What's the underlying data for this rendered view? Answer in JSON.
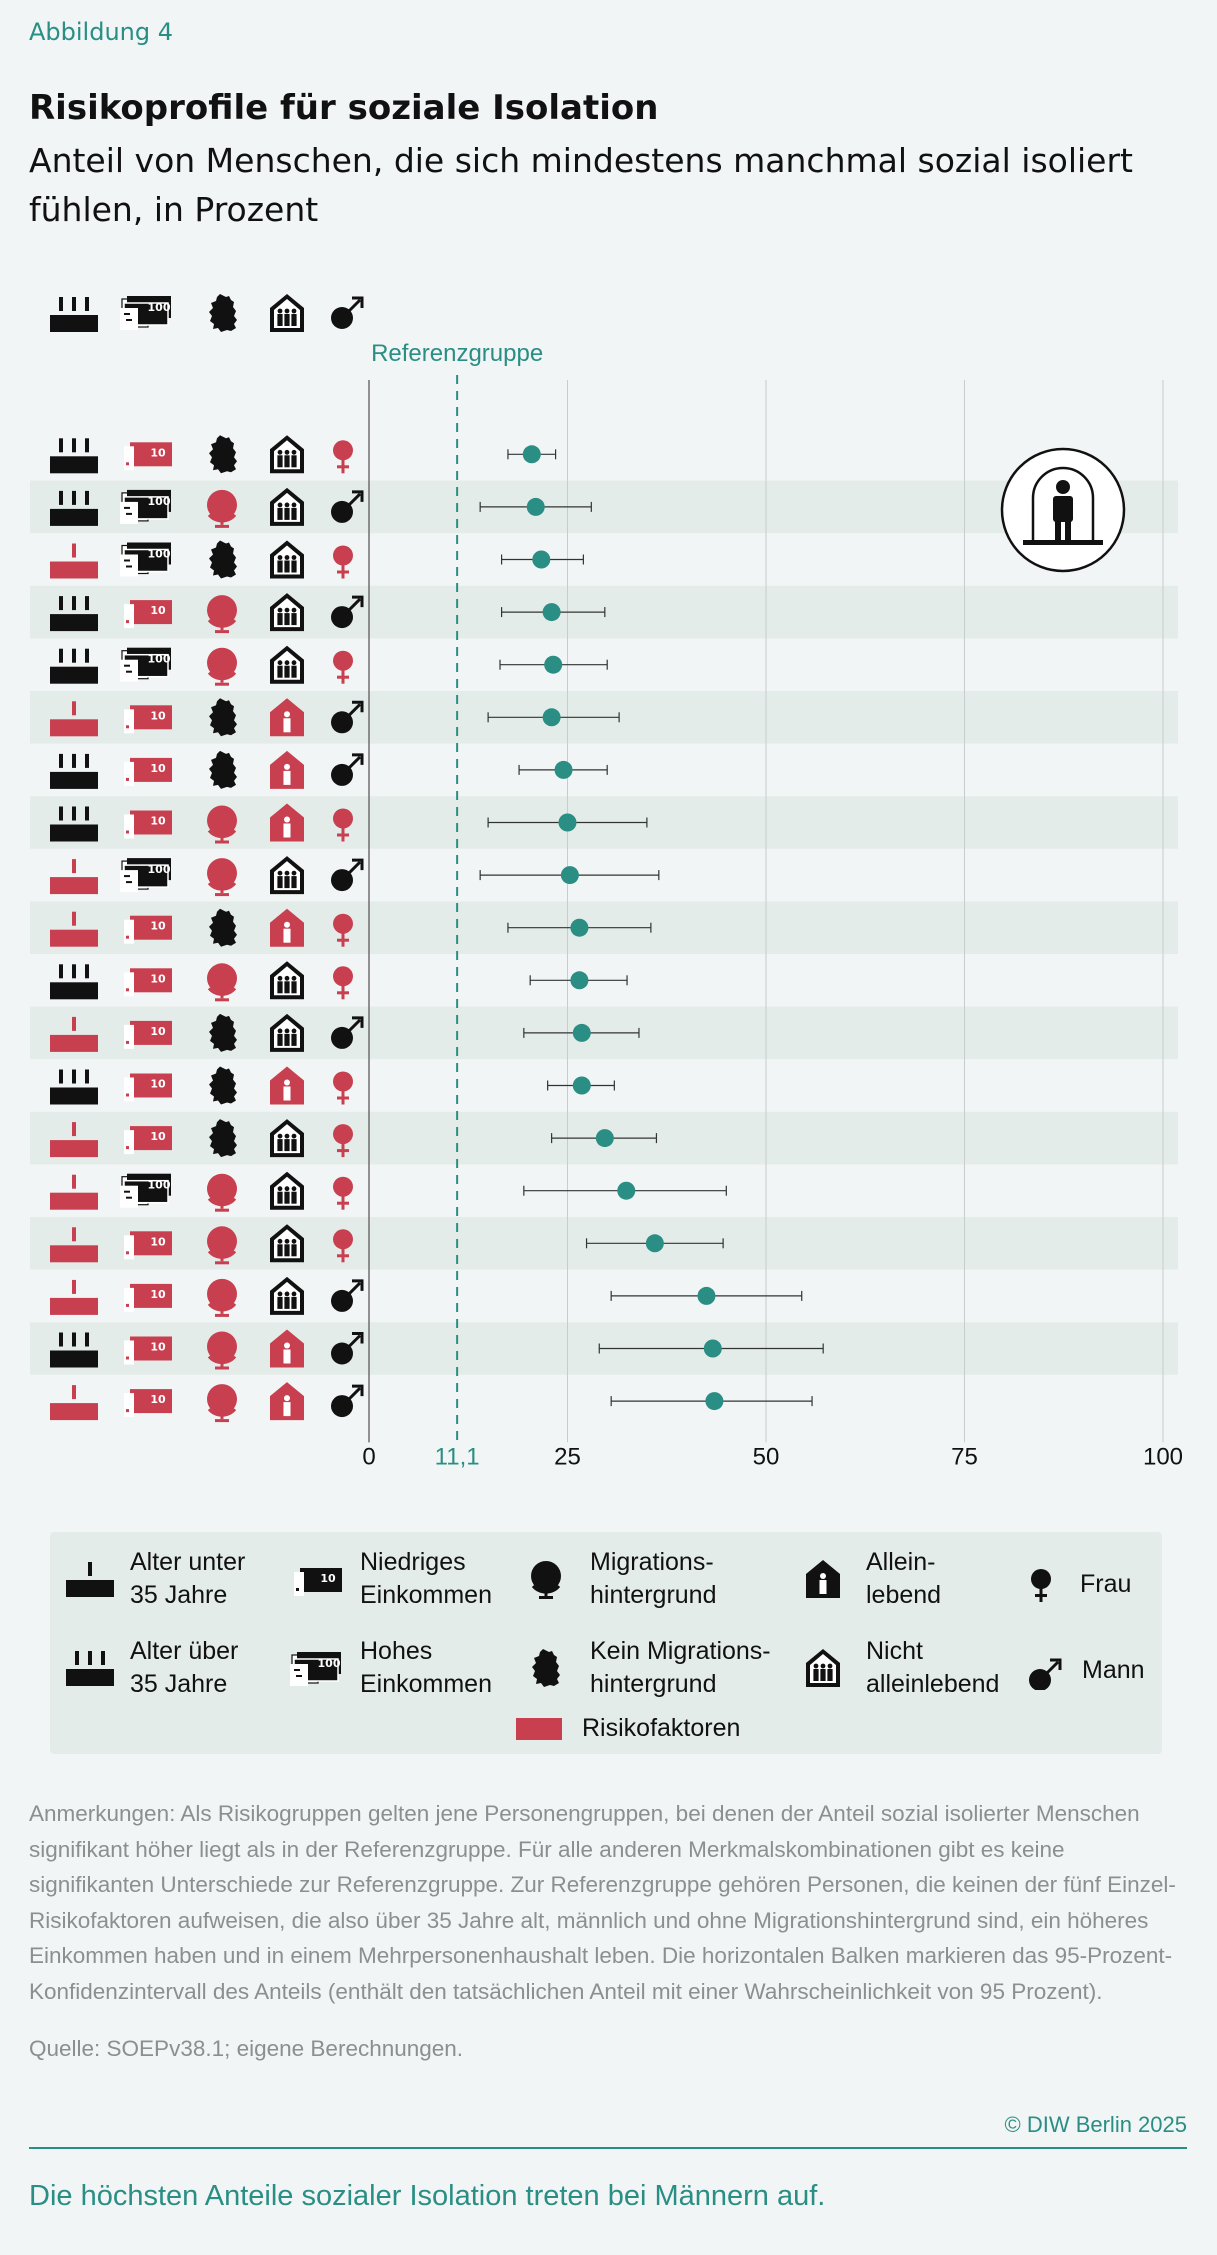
{
  "figure_label": "Abbildung 4",
  "title": "Risikoprofile für soziale Isolation",
  "subtitle": "Anteil von Menschen, die sich mindestens manchmal sozial isoliert fühlen, in Prozent",
  "reference_label": "Referenzgruppe",
  "colors": {
    "accent": "#2a8e84",
    "risk": "#c84050",
    "dot": "#2a8e84",
    "band": "#e4ecea"
  },
  "chart_data": {
    "type": "scatter",
    "title": "Risikoprofile für soziale Isolation",
    "xlabel": "",
    "ylabel": "",
    "xlim": [
      0,
      100
    ],
    "xticks": [
      "0",
      "11,1",
      "25",
      "50",
      "75",
      "100"
    ],
    "reference_value": 11.1,
    "reference_label": "Referenzgruppe",
    "reference_profile": {
      "age": "old",
      "income": "high",
      "migration": "no",
      "household": "multi",
      "gender": "m"
    },
    "rows": [
      {
        "age": "old",
        "income": "low",
        "migration": "no",
        "household": "multi",
        "gender": "f",
        "value": 20.5,
        "ci": [
          17.5,
          23.5
        ]
      },
      {
        "age": "old",
        "income": "high",
        "migration": "yes",
        "household": "multi",
        "gender": "m",
        "value": 21.0,
        "ci": [
          14.0,
          28.0
        ]
      },
      {
        "age": "young",
        "income": "high",
        "migration": "no",
        "household": "multi",
        "gender": "f",
        "value": 21.7,
        "ci": [
          16.7,
          27.0
        ]
      },
      {
        "age": "old",
        "income": "low",
        "migration": "yes",
        "household": "multi",
        "gender": "m",
        "value": 23.0,
        "ci": [
          16.7,
          29.7
        ]
      },
      {
        "age": "old",
        "income": "high",
        "migration": "yes",
        "household": "multi",
        "gender": "f",
        "value": 23.2,
        "ci": [
          16.5,
          30.0
        ]
      },
      {
        "age": "young",
        "income": "low",
        "migration": "no",
        "household": "single",
        "gender": "m",
        "value": 23.0,
        "ci": [
          15.0,
          31.5
        ]
      },
      {
        "age": "old",
        "income": "low",
        "migration": "no",
        "household": "single",
        "gender": "m",
        "value": 24.5,
        "ci": [
          18.9,
          30.0
        ]
      },
      {
        "age": "old",
        "income": "low",
        "migration": "yes",
        "household": "single",
        "gender": "f",
        "value": 25.0,
        "ci": [
          15.0,
          35.0
        ]
      },
      {
        "age": "young",
        "income": "high",
        "migration": "yes",
        "household": "multi",
        "gender": "m",
        "value": 25.3,
        "ci": [
          14.0,
          36.5
        ]
      },
      {
        "age": "young",
        "income": "low",
        "migration": "no",
        "household": "single",
        "gender": "f",
        "value": 26.5,
        "ci": [
          17.5,
          35.5
        ]
      },
      {
        "age": "old",
        "income": "low",
        "migration": "yes",
        "household": "multi",
        "gender": "f",
        "value": 26.5,
        "ci": [
          20.3,
          32.5
        ]
      },
      {
        "age": "young",
        "income": "low",
        "migration": "no",
        "household": "multi",
        "gender": "m",
        "value": 26.8,
        "ci": [
          19.5,
          34.0
        ]
      },
      {
        "age": "old",
        "income": "low",
        "migration": "no",
        "household": "single",
        "gender": "f",
        "value": 26.8,
        "ci": [
          22.5,
          30.9
        ]
      },
      {
        "age": "young",
        "income": "low",
        "migration": "no",
        "household": "multi",
        "gender": "f",
        "value": 29.7,
        "ci": [
          23.0,
          36.2
        ]
      },
      {
        "age": "young",
        "income": "high",
        "migration": "yes",
        "household": "multi",
        "gender": "f",
        "value": 32.4,
        "ci": [
          19.5,
          45.0
        ]
      },
      {
        "age": "young",
        "income": "low",
        "migration": "yes",
        "household": "multi",
        "gender": "f",
        "value": 36.0,
        "ci": [
          27.4,
          44.6
        ]
      },
      {
        "age": "young",
        "income": "low",
        "migration": "yes",
        "household": "multi",
        "gender": "m",
        "value": 42.5,
        "ci": [
          30.5,
          54.5
        ]
      },
      {
        "age": "old",
        "income": "low",
        "migration": "yes",
        "household": "single",
        "gender": "m",
        "value": 43.3,
        "ci": [
          29.0,
          57.2
        ]
      },
      {
        "age": "young",
        "income": "low",
        "migration": "yes",
        "household": "single",
        "gender": "m",
        "value": 43.5,
        "ci": [
          30.5,
          55.8
        ]
      }
    ]
  },
  "legend": {
    "young": "Alter unter 35 Jahre",
    "old": "Alter über 35 Jahre",
    "low_income": "Niedriges Einkommen",
    "high_income": "Hohes Einkommen",
    "migration": "Migrations-hintergrund",
    "no_migration": "Kein Migrations-hintergrund",
    "single": "Allein-lebend",
    "multi": "Nicht alleinlebend",
    "female": "Frau",
    "male": "Mann",
    "risk": "Risikofaktoren",
    "young_l1": "Alter unter",
    "young_l2": "35 Jahre",
    "old_l1": "Alter über",
    "old_l2": "35 Jahre",
    "low_l1": "Niedriges",
    "low_l2": "Einkommen",
    "high_l1": "Hohes",
    "high_l2": "Einkommen",
    "mig_l1": "Migrations-",
    "mig_l2": "hintergrund",
    "nomig_l1": "Kein Migrations-",
    "nomig_l2": "hintergrund",
    "single_l1": "Allein-",
    "single_l2": "lebend",
    "multi_l1": "Nicht",
    "multi_l2": "alleinlebend"
  },
  "icon_names": [
    "factory-icon",
    "banknote-icon",
    "globe-icon",
    "germany-map-icon",
    "house-icon",
    "female-symbol-icon",
    "male-symbol-icon",
    "isolated-person-icon"
  ],
  "notes": "Anmerkungen: Als Risikogruppen gelten jene Personengruppen, bei denen der Anteil sozial isolierter Menschen signifikant höher liegt als in der Referenzgruppe. Für alle anderen Merkmalskombinationen gibt es keine signifikanten Unterschiede zur Referenzgruppe. Zur Referenzgruppe gehören Personen, die keinen der fünf Einzel-Risikofaktoren aufweisen, die also über 35 Jahre alt, männlich und ohne Migrationshintergrund sind, ein höheres Einkommen haben und in einem Mehrpersonenhaushalt leben. Die horizontalen Balken markieren das 95-Prozent-Konfidenzintervall des Anteils (enthält den tatsächlichen Anteil mit einer Wahrscheinlichkeit von 95 Prozent).",
  "source": "Quelle: SOEPv38.1; eigene Berechnungen.",
  "copyright": "© DIW Berlin 2025",
  "headline": "Die höchsten Anteile sozialer Isolation treten bei Männern auf."
}
